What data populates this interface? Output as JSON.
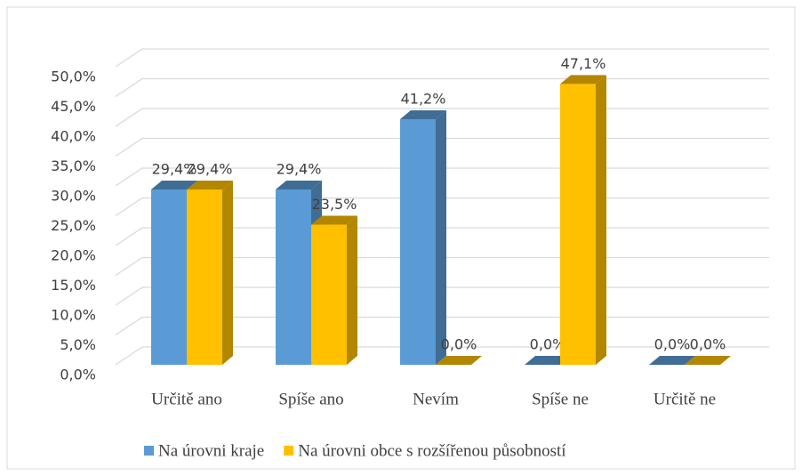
{
  "chart_data": {
    "type": "bar3d",
    "categories": [
      "Určitě ano",
      "Spíše ano",
      "Nevím",
      "Spíše ne",
      "Určitě ne"
    ],
    "series": [
      {
        "name": "Na úrovni kraje",
        "color": "#5b9bd5",
        "values": [
          29.4,
          29.4,
          41.2,
          0,
          0
        ],
        "value_labels": [
          "29,4%",
          "29,4%",
          "41,2%",
          "0,0%",
          "0,0%"
        ]
      },
      {
        "name": "Na úrovni obce s rozšířenou působností",
        "color": "#ffc000",
        "values": [
          29.4,
          23.5,
          0,
          47.1,
          0
        ],
        "value_labels": [
          "29,4%",
          "23,5%",
          "0,0%",
          "47,1%",
          "0,0%"
        ]
      }
    ],
    "ylim": [
      0,
      50
    ],
    "yticks": [
      {
        "value": 0,
        "label": "0,0%"
      },
      {
        "value": 5,
        "label": "5,0%"
      },
      {
        "value": 10,
        "label": "10,0%"
      },
      {
        "value": 15,
        "label": "15,0%"
      },
      {
        "value": 20,
        "label": "20,0%"
      },
      {
        "value": 25,
        "label": "25,0%"
      },
      {
        "value": 30,
        "label": "30,0%"
      },
      {
        "value": 35,
        "label": "35,0%"
      },
      {
        "value": 40,
        "label": "40,0%"
      },
      {
        "value": 45,
        "label": "45,0%"
      },
      {
        "value": 50,
        "label": "50,0%"
      }
    ],
    "grid": true,
    "legend": "bottom"
  }
}
